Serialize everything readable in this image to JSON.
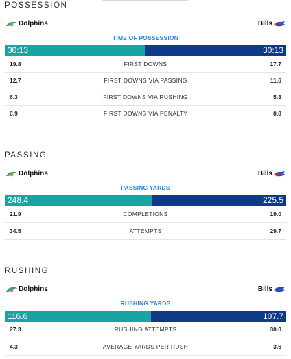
{
  "teams": {
    "home": "Dolphins",
    "away": "Bills"
  },
  "colors": {
    "home_bar": "#1aa3a3",
    "away_bar": "#0e3a8a",
    "bar_title": "#1e88e5"
  },
  "possession": {
    "title": "POSSESSION",
    "bar_title": "TIME OF POSSESSION",
    "bar_left": "30:13",
    "bar_right": "30:13",
    "left_share": 0.5,
    "rows": [
      {
        "left": "19.8",
        "label": "FIRST DOWNS",
        "right": "17.7"
      },
      {
        "left": "12.7",
        "label": "FIRST DOWNS VIA PASSING",
        "right": "11.6"
      },
      {
        "left": "6.3",
        "label": "FIRST DOWNS VIA RUSHING",
        "right": "5.3"
      },
      {
        "left": "0.9",
        "label": "FIRST DOWNS VIA PENALTY",
        "right": "0.8"
      }
    ]
  },
  "passing": {
    "title": "PASSING",
    "bar_title": "PASSING YARDS",
    "bar_left": "248.4",
    "bar_right": "225.5",
    "left_share": 0.524,
    "rows": [
      {
        "left": "21.9",
        "label": "COMPLETIONS",
        "right": "19.0"
      },
      {
        "left": "34.5",
        "label": "ATTEMPTS",
        "right": "29.7"
      }
    ]
  },
  "rushing": {
    "title": "RUSHING",
    "bar_title": "RUSHING YARDS",
    "bar_left": "116.6",
    "bar_right": "107.7",
    "left_share": 0.52,
    "rows": [
      {
        "left": "27.3",
        "label": "RUSHING ATTEMPTS",
        "right": "30.0"
      },
      {
        "left": "4.3",
        "label": "AVERAGE YARDS PER RUSH",
        "right": "3.6"
      }
    ]
  }
}
